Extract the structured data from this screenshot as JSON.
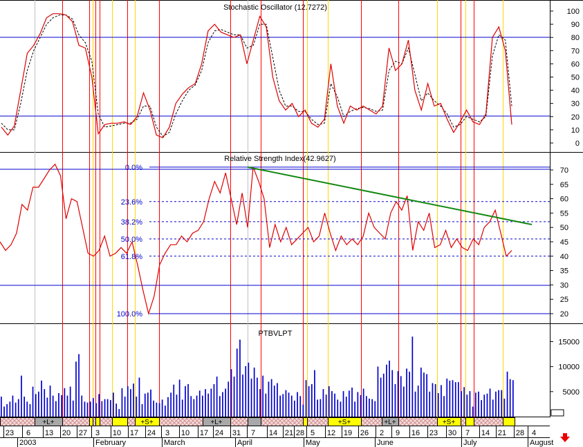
{
  "colors": {
    "grid_major": "#ff0000",
    "grid_minor": "#ffd700",
    "grid_week": "#c0c0c0",
    "blue": "#0000cc",
    "red": "#dd0000",
    "green": "#118811",
    "seg_hatch": "#e8bcbc",
    "seg_yellow": "#ffff00",
    "seg_gray": "#a8a8a8"
  },
  "chart_data": [
    {
      "type": "line",
      "title": "Stochastic Oscillator (12.7272)",
      "ylim": [
        0,
        100
      ],
      "yticks": [
        "100",
        "90",
        "80",
        "70",
        "60",
        "50",
        "40",
        "30",
        "20",
        "10",
        "0"
      ],
      "reference_lines": [
        80,
        20
      ],
      "series": [
        {
          "style": "solid",
          "values": [
            12,
            6,
            13,
            40,
            68,
            74,
            83,
            95,
            98,
            98,
            97,
            92,
            74,
            72,
            50,
            7,
            14,
            15,
            15,
            16,
            14,
            20,
            38,
            25,
            6,
            4,
            12,
            30,
            37,
            42,
            45,
            60,
            85,
            90,
            84,
            82,
            80,
            82,
            60,
            78,
            96,
            88,
            50,
            32,
            25,
            30,
            20,
            25,
            15,
            12,
            18,
            60,
            28,
            15,
            28,
            25,
            28,
            25,
            22,
            28,
            72,
            55,
            60,
            78,
            40,
            25,
            45,
            28,
            30,
            18,
            8,
            16,
            25,
            16,
            14,
            22,
            80,
            88,
            70,
            14
          ]
        },
        {
          "style": "dashed",
          "values": [
            15,
            10,
            10,
            30,
            55,
            70,
            80,
            90,
            95,
            97,
            97,
            94,
            82,
            76,
            62,
            22,
            12,
            13,
            14,
            15,
            15,
            18,
            28,
            28,
            12,
            5,
            8,
            22,
            32,
            40,
            44,
            55,
            76,
            85,
            86,
            84,
            82,
            82,
            72,
            74,
            90,
            90,
            65,
            40,
            28,
            28,
            24,
            24,
            18,
            14,
            15,
            45,
            35,
            20,
            24,
            26,
            27,
            26,
            24,
            25,
            55,
            62,
            60,
            72,
            52,
            32,
            38,
            32,
            28,
            22,
            12,
            14,
            20,
            18,
            16,
            20,
            66,
            82,
            78,
            28
          ]
        }
      ]
    },
    {
      "type": "line",
      "title": "Relative Strength Index(42.9627)",
      "ylim": [
        20,
        70
      ],
      "yticks": [
        "70",
        "65",
        "60",
        "55",
        "50",
        "45",
        "40",
        "35",
        "30",
        "25",
        "20"
      ],
      "reference_lines": [
        70,
        30
      ],
      "fibonacci": [
        {
          "label": "0.0%",
          "value": 71
        },
        {
          "label": "23.6%",
          "value": 59
        },
        {
          "label": "38.2%",
          "value": 52
        },
        {
          "label": "50.0%",
          "value": 46
        },
        {
          "label": "61.8%",
          "value": 40
        },
        {
          "label": "100.0%",
          "value": 20
        }
      ],
      "trendline": {
        "from": {
          "x": 45,
          "y": 71
        },
        "to": {
          "x": 96,
          "y": 51
        }
      },
      "series": [
        {
          "style": "solid",
          "values": [
            45,
            42,
            44,
            48,
            58,
            56,
            64,
            64,
            67,
            70,
            72,
            68,
            53,
            60,
            59,
            50,
            41,
            40,
            42,
            47,
            40,
            41,
            43,
            41,
            45,
            37,
            28,
            20,
            26,
            37,
            41,
            44,
            44,
            47,
            45,
            48,
            49,
            52,
            60,
            66,
            62,
            69,
            60,
            51,
            62,
            50,
            71,
            66,
            60,
            43,
            51,
            45,
            50,
            44,
            46,
            48,
            50,
            45,
            47,
            55,
            48,
            42,
            47,
            44,
            46,
            44,
            47,
            55,
            50,
            48,
            46,
            55,
            59,
            56,
            61,
            42,
            52,
            49,
            55,
            43,
            44,
            49,
            43,
            46,
            43,
            42,
            46,
            44,
            50,
            52,
            56,
            48,
            40,
            42
          ]
        }
      ]
    },
    {
      "type": "bar",
      "title": "PTBVLPT",
      "ylim": [
        0,
        17000
      ],
      "yticks": [
        "15000",
        "10000",
        "5000"
      ],
      "values": [
        4000,
        2000,
        2500,
        3000,
        4200,
        2800,
        3500,
        8200,
        4000,
        3000,
        2500,
        6000,
        4500,
        5000,
        7200,
        5500,
        3800,
        6200,
        4200,
        3100,
        4700,
        4300,
        5700,
        4200,
        6000,
        3200,
        11000,
        12500,
        4200,
        3000,
        2800,
        3000,
        3700,
        2700,
        4500,
        3100,
        3500,
        3500,
        3300,
        4800,
        2600,
        1500,
        5700,
        4000,
        6100,
        5500,
        6600,
        4000,
        7800,
        2500,
        4600,
        4800,
        5400,
        3200,
        2800,
        2700,
        3400,
        2200,
        3900,
        4800,
        6400,
        4400,
        7400,
        3400,
        6100,
        6500,
        4100,
        3500,
        4200,
        5200,
        4200,
        5500,
        4600,
        5600,
        6500,
        8000,
        4100,
        4900,
        5600,
        7000,
        9500,
        8000,
        13600,
        15400,
        8400,
        10100,
        10800,
        7600,
        9800,
        7800,
        5500,
        8200,
        4600,
        7000,
        7500,
        6200,
        6700,
        4200,
        4500,
        5300,
        4800,
        4200,
        3200,
        4900,
        4100,
        2400,
        7300,
        6100,
        6500,
        9300,
        3400,
        3500,
        5500,
        4400,
        6100,
        5100,
        4600,
        3400,
        3000,
        5100,
        4000,
        5200,
        5800,
        3000,
        4900,
        4300,
        5600,
        4100,
        3600,
        3500,
        3100,
        10000,
        7800,
        8600,
        10400,
        11200,
        9300,
        6500,
        9100,
        8100,
        6000,
        9600,
        9000,
        16000,
        5000,
        6200,
        9800,
        8800,
        8500,
        5000,
        6700,
        6500,
        4700,
        6300,
        4100,
        7600,
        7200,
        7300,
        6900,
        6900,
        5100,
        5900,
        4400,
        5100,
        2000,
        4800,
        5000,
        3300,
        4400,
        4600,
        5600,
        3400,
        5000,
        5300,
        5300,
        3600,
        9000,
        7500,
        7300
      ]
    }
  ],
  "segments": [
    {
      "label": "",
      "style": "hatch"
    },
    {
      "label": "+L+",
      "style": "gray"
    },
    {
      "label": "",
      "style": "hatch"
    },
    {
      "label": "",
      "style": "yellow"
    },
    {
      "label": "",
      "style": "hatch"
    },
    {
      "label": "",
      "style": "yellow"
    },
    {
      "label": "",
      "style": "hatch"
    },
    {
      "label": "",
      "style": "yellow"
    },
    {
      "label": "",
      "style": "hatch"
    },
    {
      "label": "+S+",
      "style": "yellow"
    },
    {
      "label": "",
      "style": "hatch"
    },
    {
      "label": "+L+",
      "style": "gray"
    },
    {
      "label": "",
      "style": "hatch"
    },
    {
      "label": "",
      "style": "gray"
    },
    {
      "label": "",
      "style": "hatch"
    },
    {
      "label": "",
      "style": "yellow"
    },
    {
      "label": "",
      "style": "hatch"
    },
    {
      "label": "+S+",
      "style": "yellow"
    },
    {
      "label": "",
      "style": "hatch"
    },
    {
      "label": "+L+",
      "style": "gray"
    },
    {
      "label": "",
      "style": "hatch"
    },
    {
      "label": "+S+",
      "style": "yellow"
    },
    {
      "label": "",
      "style": "hatch"
    },
    {
      "label": "",
      "style": "yellow"
    },
    {
      "label": "",
      "style": "hatch"
    },
    {
      "label": "",
      "style": "yellow"
    }
  ],
  "x_axis": {
    "days": [
      "23",
      "6",
      "13",
      "20",
      "27",
      "3",
      "10",
      "17",
      "24",
      "3",
      "10",
      "17",
      "24",
      "31",
      "7",
      "14",
      "21",
      "28",
      "5",
      "12",
      "19",
      "26",
      "2",
      "9",
      "16",
      "23",
      "30",
      "7",
      "14",
      "21",
      "28",
      "4"
    ],
    "months": [
      "2003",
      "February",
      "March",
      "April",
      "May",
      "June",
      "July",
      "August"
    ]
  }
}
